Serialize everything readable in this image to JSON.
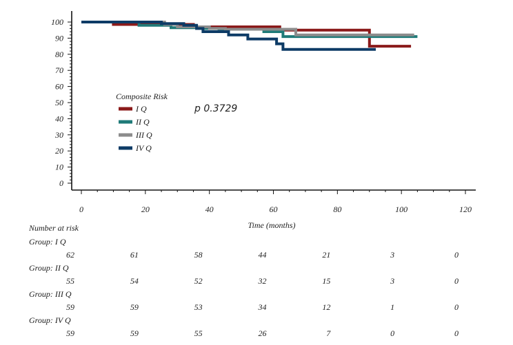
{
  "chart_data": {
    "type": "line",
    "step": true,
    "xlabel": "Time (months)",
    "ylabel": "",
    "xlim": [
      0,
      120
    ],
    "ylim": [
      0,
      100
    ],
    "xticks": [
      0,
      20,
      40,
      60,
      80,
      100,
      120
    ],
    "yticks": [
      0,
      10,
      20,
      30,
      40,
      50,
      60,
      70,
      80,
      90,
      100
    ],
    "legend_title": "Composite Risk",
    "p_value": "p 0.3729",
    "series": [
      {
        "name": "I Q",
        "color": "#8b1a1a",
        "x": [
          0,
          10,
          20,
          25,
          30,
          35,
          40,
          45,
          50,
          55,
          60,
          62,
          66,
          70,
          75,
          78,
          85,
          89,
          90,
          95,
          103
        ],
        "y": [
          100,
          98.5,
          98.5,
          98.5,
          98.5,
          97,
          97,
          97,
          97,
          97,
          97,
          95,
          95,
          95,
          95,
          95,
          95,
          95,
          85,
          85,
          85
        ]
      },
      {
        "name": "II Q",
        "color": "#1f7a78",
        "x": [
          0,
          18,
          23,
          28,
          34,
          38,
          43,
          50,
          57,
          61,
          63,
          70,
          80,
          90,
          100,
          105
        ],
        "y": [
          100,
          98,
          98,
          96.5,
          96.5,
          96,
          95.5,
          95.5,
          94,
          94,
          91,
          91,
          91,
          91,
          91,
          91
        ]
      },
      {
        "name": "III Q",
        "color": "#8c8c8c",
        "x": [
          0,
          20,
          26,
          30,
          36,
          40,
          45,
          50,
          55,
          60,
          66,
          67,
          75,
          85,
          95,
          104
        ],
        "y": [
          100,
          100,
          98.5,
          97,
          97,
          96,
          95.5,
          95.5,
          95.5,
          95.5,
          95.5,
          92,
          92,
          92,
          92,
          92
        ]
      },
      {
        "name": "IV Q",
        "color": "#0d3b66",
        "x": [
          0,
          25,
          32,
          36,
          38,
          42,
          46,
          50,
          52,
          58,
          61,
          63,
          70,
          80,
          90,
          92
        ],
        "y": [
          100,
          99,
          98,
          96,
          94,
          94,
          92,
          92,
          89.5,
          89.5,
          86.5,
          83,
          83,
          83,
          83,
          83
        ]
      }
    ],
    "risk_table": {
      "title": "Number at risk",
      "times": [
        0,
        20,
        40,
        60,
        80,
        100,
        120
      ],
      "groups": [
        {
          "label": "Group: I Q",
          "values": [
            "62",
            "61",
            "58",
            "44",
            "21",
            "3",
            "0"
          ]
        },
        {
          "label": "Group: II Q",
          "values": [
            "55",
            "54",
            "52",
            "32",
            "15",
            "3",
            "0"
          ]
        },
        {
          "label": "Group: III Q",
          "values": [
            "59",
            "59",
            "53",
            "34",
            "12",
            "1",
            "0"
          ]
        },
        {
          "label": "Group: IV Q",
          "values": [
            "59",
            "59",
            "55",
            "26",
            "7",
            "0",
            "0"
          ]
        }
      ]
    }
  }
}
